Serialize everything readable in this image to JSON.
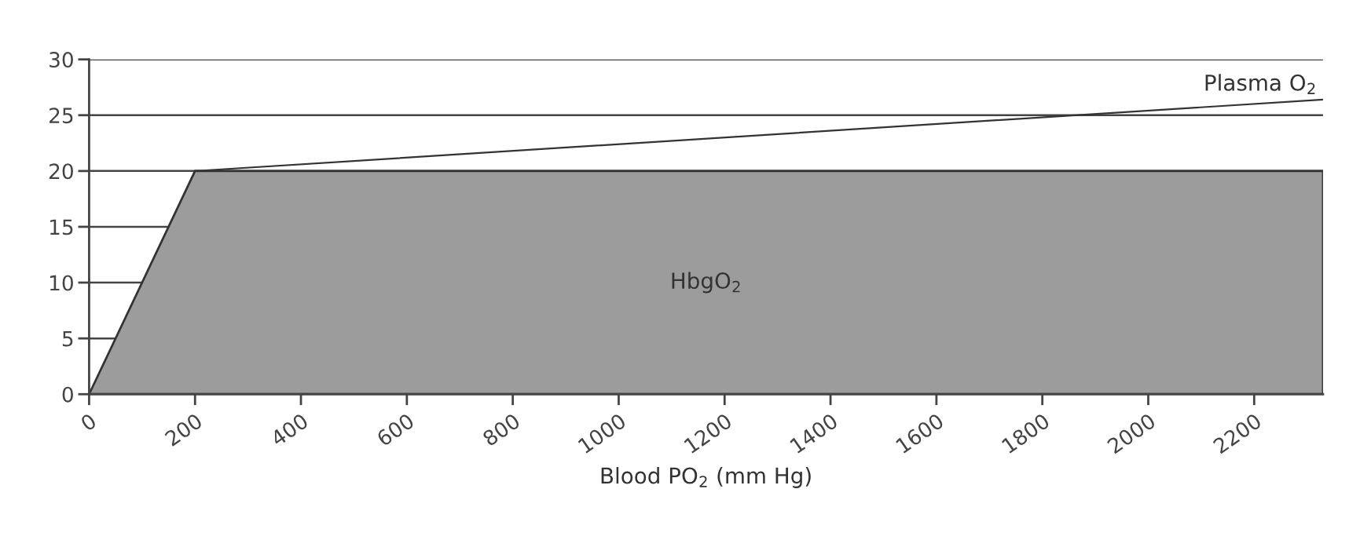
{
  "chart_data": {
    "type": "area",
    "xlabel": "Blood PO$_{2}$ (mm Hg)",
    "series": [
      {
        "name": "HbgO$_{2}$",
        "color": "#9c9c9c",
        "x": [
          0,
          200,
          2330
        ],
        "values": [
          0,
          20,
          20
        ]
      },
      {
        "name": "Plasma O$_{2}$",
        "type": "line",
        "color": "#333333",
        "x": [
          200,
          2330
        ],
        "values": [
          20,
          26.4
        ]
      }
    ],
    "xlim": [
      0,
      2330
    ],
    "xticks": [
      0,
      200,
      400,
      600,
      800,
      1000,
      1200,
      1400,
      1600,
      1800,
      2000,
      2200
    ],
    "ylim": [
      0,
      30
    ],
    "yticks": [
      0,
      5,
      10,
      15,
      20,
      25,
      30
    ],
    "grid": "y",
    "legend": false
  }
}
